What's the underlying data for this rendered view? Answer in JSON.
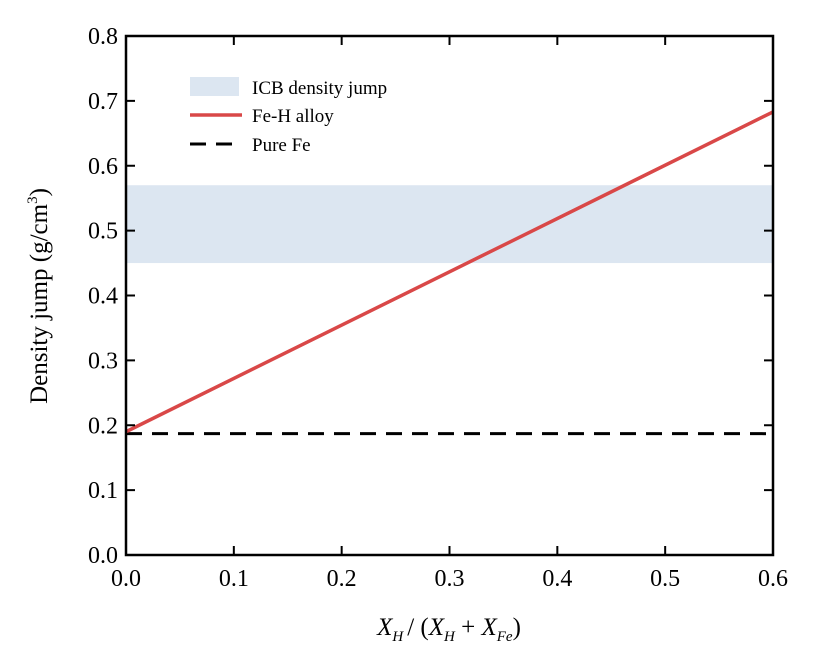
{
  "chart_data": {
    "type": "line",
    "title": "",
    "xlabel": "X_H / (X_H + X_Fe)",
    "xlabel_parts": {
      "xh": "X",
      "xh_sub": "H",
      "mid": "/ (",
      "xh2": "X",
      "xh2_sub": "H",
      "plus": " + ",
      "xfe": "X",
      "xfe_sub": "Fe",
      "close": ")"
    },
    "ylabel": "Density jump (g/cm3)",
    "ylabel_parts": {
      "main": "Density jump (g/cm",
      "sup": "3",
      "close": ")"
    },
    "xlim": [
      0.0,
      0.6
    ],
    "ylim": [
      0.0,
      0.8
    ],
    "xticks": [
      "0.0",
      "0.1",
      "0.2",
      "0.3",
      "0.4",
      "0.5",
      "0.6"
    ],
    "yticks": [
      "0.0",
      "0.1",
      "0.2",
      "0.3",
      "0.4",
      "0.5",
      "0.6",
      "0.7",
      "0.8"
    ],
    "grid": false,
    "legend_position": "top-left",
    "band": {
      "name": "ICB density jump",
      "ymin": 0.45,
      "ymax": 0.57,
      "color": "#dce6f1"
    },
    "series": [
      {
        "name": "Fe-H alloy",
        "x": [
          0.0,
          0.6
        ],
        "y": [
          0.19,
          0.683
        ],
        "color": "#d94848",
        "style": "solid"
      },
      {
        "name": "Pure Fe",
        "x": [
          0.0,
          0.6
        ],
        "y": [
          0.187,
          0.187
        ],
        "color": "#000000",
        "style": "dashed"
      }
    ]
  }
}
